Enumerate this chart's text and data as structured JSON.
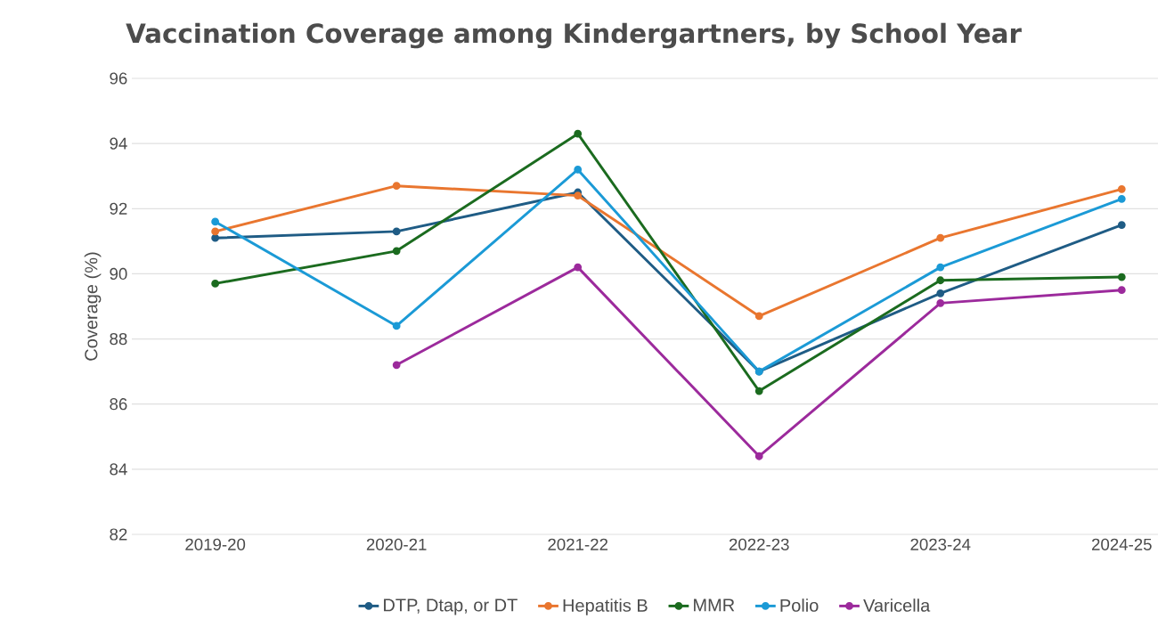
{
  "chart_data": {
    "type": "line",
    "title": "Vaccination Coverage among Kindergartners, by School Year",
    "ylabel": "Coverage (%)",
    "categories": [
      "2019-20",
      "2020-21",
      "2021-22",
      "2022-23",
      "2023-24",
      "2024-25"
    ],
    "series": [
      {
        "name": "DTP, Dtap, or DT",
        "color": "#1f5c85",
        "values": [
          91.1,
          91.3,
          92.5,
          87.0,
          89.4,
          91.5
        ]
      },
      {
        "name": "Hepatitis B",
        "color": "#e9762f",
        "values": [
          91.3,
          92.7,
          92.4,
          88.7,
          91.1,
          92.6
        ]
      },
      {
        "name": "MMR",
        "color": "#1b6b1f",
        "values": [
          89.7,
          90.7,
          94.3,
          86.4,
          89.8,
          89.9
        ]
      },
      {
        "name": "Polio",
        "color": "#1b9ad6",
        "values": [
          91.6,
          88.4,
          93.2,
          87.0,
          90.2,
          92.3
        ]
      },
      {
        "name": "Varicella",
        "color": "#9c2a9c",
        "values": [
          null,
          87.2,
          90.2,
          84.4,
          89.1,
          89.5
        ]
      }
    ],
    "ylim": [
      82,
      96
    ],
    "yticks": [
      82,
      84,
      86,
      88,
      90,
      92,
      94,
      96
    ],
    "grid": "y",
    "legend": "bottom",
    "marker": "circle",
    "line_style": "solid"
  }
}
